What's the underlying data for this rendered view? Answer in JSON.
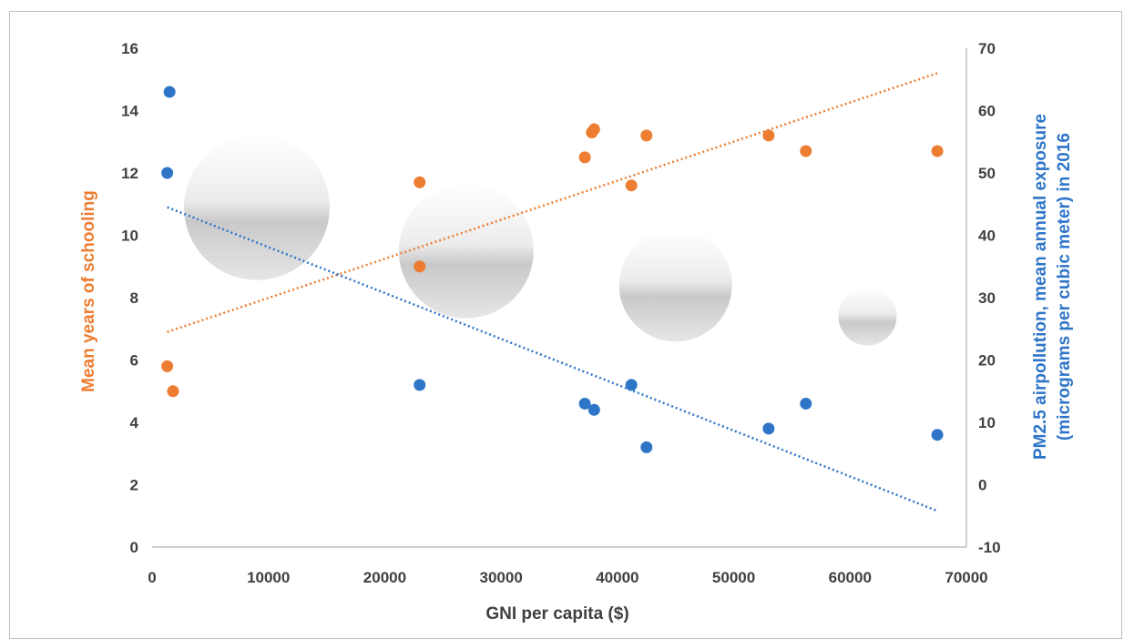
{
  "chart_data": {
    "type": "scatter",
    "title": "",
    "xlabel": "GNI per capita ($)",
    "ylabel_left": "Mean years of schooling",
    "ylabel_right": "PM2.5 airpollution, mean annual exposure (micrograms per cubic meter) in 2016",
    "xlim": [
      0,
      70000
    ],
    "ylim_left": [
      0,
      16
    ],
    "ylim_right": [
      -10,
      70
    ],
    "x_ticks": [
      "0",
      "10000",
      "20000",
      "30000",
      "40000",
      "50000",
      "60000",
      "70000"
    ],
    "y_left_ticks": [
      "0",
      "2",
      "4",
      "6",
      "8",
      "10",
      "12",
      "14",
      "16"
    ],
    "y_right_ticks": [
      "-10",
      "0",
      "10",
      "20",
      "30",
      "40",
      "50",
      "60",
      "70"
    ],
    "colors": {
      "schooling": "#ed7d31",
      "pollution": "#2e75c8",
      "axis_text": "#404040",
      "bubble": "#d9d9d9"
    },
    "series": [
      {
        "axis": "left",
        "color": "#ed7d31",
        "points": [
          [
            1300,
            5.8
          ],
          [
            1800,
            5.0
          ],
          [
            23000,
            11.7
          ],
          [
            23000,
            9.0
          ],
          [
            37200,
            12.5
          ],
          [
            37800,
            13.3
          ],
          [
            38000,
            13.4
          ],
          [
            41200,
            11.6
          ],
          [
            42500,
            13.2
          ],
          [
            53000,
            13.2
          ],
          [
            56200,
            12.7
          ],
          [
            67500,
            12.7
          ]
        ],
        "trendline": [
          [
            1300,
            6.9
          ],
          [
            67500,
            15.2
          ]
        ]
      },
      {
        "axis": "right",
        "color": "#2e75c8",
        "points": [
          [
            1500,
            63
          ],
          [
            1300,
            50
          ],
          [
            23000,
            16
          ],
          [
            37200,
            13
          ],
          [
            38000,
            12
          ],
          [
            41200,
            16
          ],
          [
            42500,
            6
          ],
          [
            53000,
            9
          ],
          [
            56200,
            13
          ],
          [
            67500,
            8
          ]
        ],
        "trendline": [
          [
            1300,
            44.5
          ],
          [
            67500,
            -4.2
          ]
        ]
      }
    ],
    "bubbles": [
      {
        "x": 9000,
        "y": 10.9,
        "r": 80
      },
      {
        "x": 27000,
        "y": 9.5,
        "r": 74
      },
      {
        "x": 45000,
        "y": 8.4,
        "r": 62
      },
      {
        "x": 61500,
        "y": 7.4,
        "r": 32
      }
    ],
    "grid": false,
    "legend": "none"
  }
}
